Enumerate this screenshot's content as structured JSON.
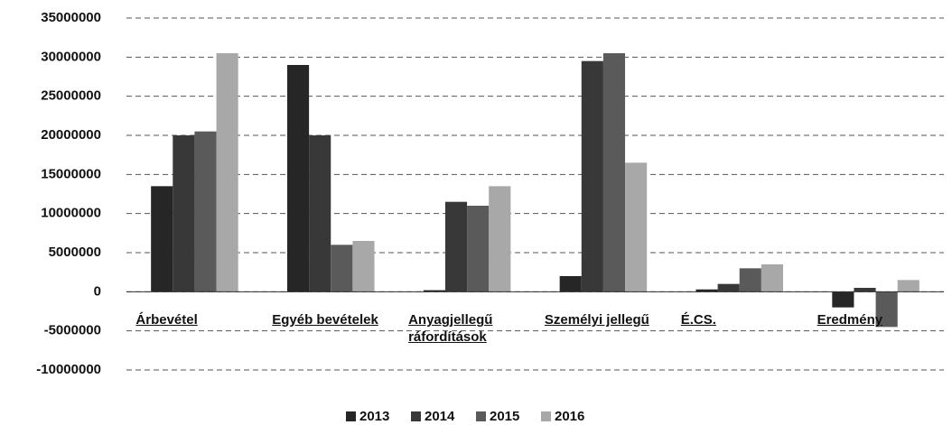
{
  "chart_data": {
    "type": "bar",
    "categories": [
      "Árbevétel",
      "Egyéb bevételek",
      "Anyagjellegű ráfordítások",
      "Személyi jellegű",
      "É.CS.",
      "Eredmény"
    ],
    "series": [
      {
        "name": "2013",
        "color": "#262626",
        "values": [
          13500000,
          29000000,
          200000,
          2000000,
          300000,
          -2000000
        ]
      },
      {
        "name": "2014",
        "color": "#383838",
        "values": [
          20000000,
          20000000,
          11500000,
          29500000,
          1000000,
          500000
        ]
      },
      {
        "name": "2015",
        "color": "#5a5a5a",
        "values": [
          20500000,
          6000000,
          11000000,
          30500000,
          3000000,
          -4500000
        ]
      },
      {
        "name": "2016",
        "color": "#a8a8a8",
        "values": [
          30500000,
          6500000,
          13500000,
          16500000,
          3500000,
          1500000
        ]
      }
    ],
    "ylim": [
      -10000000,
      35000000
    ],
    "yticks": [
      -10000000,
      -5000000,
      0,
      5000000,
      10000000,
      15000000,
      20000000,
      25000000,
      30000000,
      35000000
    ],
    "grid": true,
    "legend": "bottom"
  }
}
